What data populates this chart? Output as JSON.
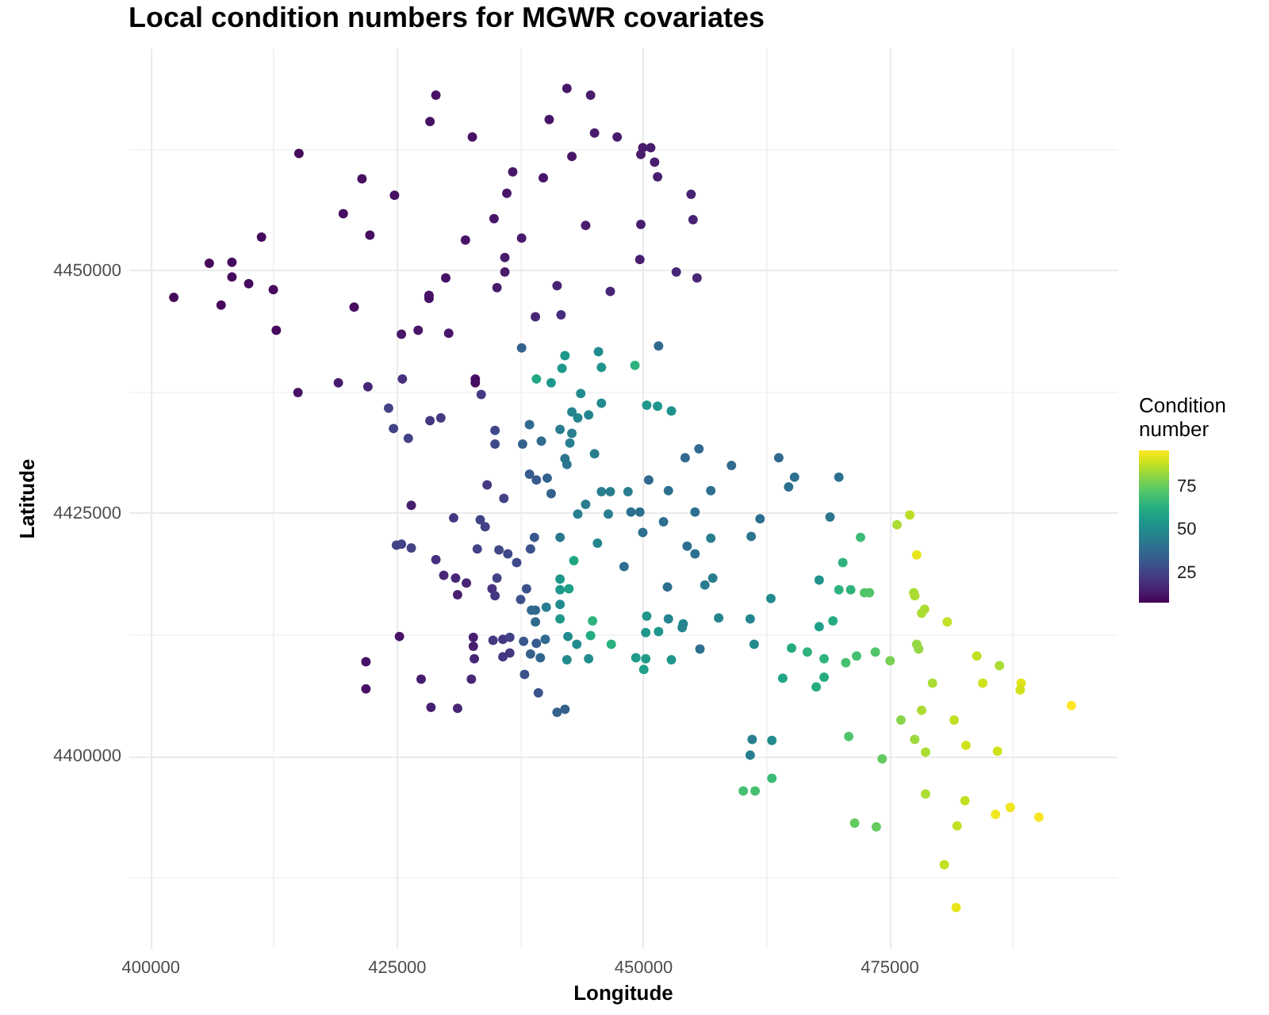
{
  "chart_data": {
    "type": "scatter",
    "title": "Local condition numbers for MGWR covariates",
    "xlabel": "Longitude",
    "ylabel": "Latitude",
    "legend_title": "Condition\nnumber",
    "x": [
      429000,
      428400,
      432700,
      415100,
      421500,
      424800,
      419600,
      434900,
      411300,
      422300,
      432000,
      406000,
      408300,
      408300,
      410000,
      412500,
      402400,
      407200,
      430000,
      428300,
      428300,
      420700,
      412800,
      425500,
      427200,
      430300,
      442300,
      444700,
      440500,
      445100,
      447400,
      450000,
      450800,
      449800,
      442800,
      451200,
      436800,
      439900,
      451500,
      436200,
      454900,
      444200,
      449800,
      455100,
      437700,
      436000,
      449700,
      436000,
      453400,
      455500,
      435200,
      441300,
      446700,
      439100,
      441700,
      437700,
      442100,
      445500,
      441800,
      445800,
      449200,
      415000,
      419100,
      422100,
      425600,
      433000,
      433000,
      433600,
      439200,
      440700,
      443700,
      450400,
      445800,
      442800,
      443400,
      444500,
      424200,
      424700,
      426200,
      428400,
      429500,
      435000,
      435000,
      438500,
      441600,
      442800,
      437800,
      439700,
      442600,
      445100,
      442100,
      442300,
      438500,
      439200,
      440300,
      440700,
      434200,
      435900,
      445800,
      446700,
      448500,
      450600,
      444200,
      443400,
      446500,
      448800,
      449700,
      426500,
      430800,
      433500,
      434000,
      450000,
      425000,
      425500,
      426500,
      433200,
      435400,
      436300,
      438600,
      439000,
      441600,
      445400,
      443000,
      437200,
      429000,
      448100,
      429800,
      431000,
      432100,
      431200,
      435200,
      434700,
      435000,
      438200,
      437600,
      441600,
      441600,
      442500,
      438700,
      439100,
      440200,
      439100,
      441600,
      441600,
      444900,
      450400,
      450300,
      425300,
      432800,
      432800,
      432900,
      434800,
      435800,
      436500,
      435800,
      436500,
      437900,
      439200,
      440100,
      438600,
      439600,
      442400,
      443300,
      444700,
      446800,
      444500,
      442300,
      449300,
      450300,
      450100,
      421900,
      421900,
      427500,
      432600,
      438000,
      439400,
      451600,
      451500,
      452900,
      454300,
      455700,
      459000,
      463800,
      465400,
      464800,
      469900,
      452600,
      456900,
      455300,
      452100,
      461900,
      469000,
      475800,
      477100,
      472100,
      477800,
      454500,
      455300,
      456900,
      461000,
      470300,
      467900,
      469900,
      471100,
      472500,
      473000,
      477500,
      477600,
      478600,
      478300,
      480900,
      452500,
      456300,
      457100,
      463000,
      451600,
      452600,
      454000,
      454100,
      457700,
      460900,
      467900,
      469300,
      455800,
      461300,
      465100,
      466700,
      468400,
      470600,
      471700,
      473600,
      475100,
      477800,
      478000,
      483900,
      486200,
      452900,
      464200,
      468400,
      467600,
      479400,
      484500,
      488400,
      488300,
      493500,
      476200,
      478300,
      481600,
      477600,
      478700,
      482800,
      486000,
      470900,
      474300,
      461100,
      463100,
      460900,
      463100,
      460200,
      461400,
      471500,
      473700,
      478700,
      482700,
      481900,
      485800,
      487300,
      490200,
      480600,
      481800,
      428500,
      431200,
      441300,
      442100
    ],
    "values": [
      4468000,
      4465300,
      4463700,
      4462000,
      4459400,
      4457700,
      4455800,
      4455300,
      4453400,
      4453600,
      4453100,
      4450700,
      4450800,
      4449300,
      4448600,
      4448000,
      4447200,
      4446400,
      4449200,
      4447400,
      4447100,
      4446200,
      4443800,
      4443400,
      4443800,
      4443500,
      4468700,
      4468000,
      4465500,
      4464100,
      4463700,
      4462600,
      4462600,
      4461900,
      4461700,
      4461100,
      4460100,
      4459500,
      4459600,
      4457900,
      4457800,
      4454600,
      4454700,
      4455200,
      4453300,
      4451300,
      4451100,
      4449800,
      4449800,
      4449200,
      4448200,
      4448400,
      4447800,
      4445200,
      4445400,
      4442000,
      4441200,
      4441600,
      4439900,
      4440000,
      4440200,
      4437400,
      4438400,
      4438000,
      4438800,
      4438800,
      4438400,
      4437200,
      4438800,
      4438400,
      4437300,
      4436100,
      4436300,
      4435400,
      4434800,
      4435100,
      4435800,
      4433700,
      4432700,
      4434500,
      4434800,
      4433500,
      4432100,
      4434100,
      4433600,
      4433200,
      4432100,
      4432400,
      4432200,
      4431100,
      4430600,
      4430000,
      4429000,
      4428400,
      4428600,
      4427000,
      4427900,
      4426500,
      4427200,
      4427200,
      4427200,
      4428400,
      4425900,
      4424900,
      4424900,
      4425100,
      4425100,
      4425800,
      4424500,
      4424300,
      4423600,
      4423000,
      4421700,
      4421800,
      4421400,
      4421300,
      4421200,
      4420800,
      4421300,
      4422500,
      4422500,
      4421900,
      4420100,
      4419900,
      4420200,
      4419500,
      4418600,
      4418300,
      4417800,
      4416600,
      4418300,
      4417200,
      4416500,
      4417200,
      4416100,
      4418200,
      4417100,
      4417200,
      4415000,
      4415000,
      4415300,
      4413800,
      4415600,
      4414100,
      4413900,
      4414400,
      4412700,
      4412300,
      4412200,
      4411300,
      4410000,
      4411900,
      4412000,
      4412200,
      4410200,
      4410600,
      4411800,
      4411600,
      4412000,
      4410500,
      4410100,
      4412300,
      4411500,
      4412400,
      4411500,
      4410000,
      4409900,
      4410100,
      4410000,
      4408900,
      4409700,
      4406900,
      4407900,
      4407900,
      4408400,
      4406500,
      4442200,
      4436000,
      4435500,
      4430700,
      4431600,
      4429900,
      4430700,
      4428700,
      4427700,
      4428700,
      4427300,
      4427300,
      4425100,
      4424100,
      4424400,
      4424600,
      4423800,
      4424800,
      4422500,
      4420700,
      4421600,
      4420800,
      4422400,
      4422600,
      4419900,
      4418100,
      4417100,
      4417100,
      4416800,
      4416800,
      4416800,
      4416500,
      4415100,
      4414700,
      4413800,
      4417400,
      4417600,
      4418300,
      4416200,
      4412800,
      4414100,
      4413200,
      4413600,
      4414200,
      4414100,
      4413300,
      4413900,
      4411000,
      4411500,
      4411100,
      4410700,
      4410000,
      4409600,
      4410300,
      4410700,
      4409800,
      4411500,
      4411000,
      4410300,
      4409300,
      4409900,
      4408000,
      4408100,
      4407100,
      4407500,
      4407500,
      4407500,
      4406800,
      4405200,
      4403700,
      4404700,
      4403700,
      4401700,
      4400400,
      4401100,
      4400500,
      4402000,
      4399700,
      4401700,
      4401600,
      4400100,
      4397700,
      4396400,
      4396400,
      4393100,
      4392700,
      4396100,
      4395400,
      4392800,
      4394000,
      4394700,
      4393700,
      4388800,
      4384400,
      4405000,
      4404900,
      4404500,
      4404800
    ],
    "cvalues": [
      12,
      12,
      12,
      10,
      11,
      11,
      11,
      13,
      10,
      11,
      12,
      10,
      10,
      10,
      10,
      10,
      9,
      10,
      12,
      12,
      12,
      11,
      10,
      13,
      13,
      13,
      13,
      14,
      13,
      14,
      14,
      14,
      14,
      14,
      13,
      15,
      13,
      13,
      15,
      13,
      16,
      15,
      15,
      16,
      14,
      14,
      15,
      14,
      17,
      17,
      14,
      16,
      17,
      17,
      19,
      35,
      55,
      50,
      55,
      53,
      65,
      12,
      14,
      17,
      20,
      11,
      11,
      22,
      60,
      55,
      50,
      55,
      50,
      48,
      48,
      48,
      25,
      25,
      25,
      22,
      22,
      27,
      27,
      38,
      45,
      45,
      35,
      38,
      45,
      45,
      43,
      43,
      33,
      33,
      35,
      35,
      22,
      25,
      45,
      45,
      45,
      38,
      45,
      45,
      45,
      40,
      40,
      15,
      22,
      25,
      25,
      40,
      25,
      25,
      25,
      25,
      27,
      27,
      30,
      32,
      43,
      48,
      60,
      27,
      20,
      40,
      17,
      17,
      17,
      15,
      25,
      20,
      22,
      30,
      30,
      55,
      55,
      58,
      37,
      37,
      45,
      38,
      50,
      55,
      65,
      54,
      54,
      12,
      15,
      15,
      17,
      22,
      22,
      25,
      22,
      22,
      32,
      33,
      38,
      35,
      37,
      50,
      50,
      62,
      64,
      50,
      50,
      56,
      56,
      58,
      12,
      12,
      15,
      17,
      30,
      30,
      38,
      55,
      52,
      38,
      38,
      38,
      38,
      40,
      40,
      40,
      40,
      40,
      40,
      40,
      40,
      42,
      85,
      87,
      68,
      93,
      40,
      40,
      45,
      42,
      65,
      52,
      65,
      65,
      72,
      72,
      85,
      85,
      85,
      85,
      88,
      40,
      45,
      45,
      50,
      54,
      48,
      48,
      48,
      48,
      48,
      58,
      62,
      40,
      50,
      62,
      65,
      65,
      70,
      70,
      72,
      78,
      82,
      82,
      88,
      85,
      55,
      60,
      62,
      62,
      85,
      90,
      92,
      90,
      96,
      80,
      85,
      88,
      83,
      85,
      90,
      90,
      72,
      75,
      45,
      50,
      45,
      68,
      70,
      70,
      75,
      75,
      85,
      88,
      88,
      94,
      94,
      95,
      88,
      93,
      15,
      17,
      35,
      35
    ],
    "clim": [
      8,
      96
    ],
    "cticks": [
      25,
      50,
      75
    ],
    "xlim": [
      397800,
      498100
    ],
    "ylim": [
      4380200,
      4472900
    ],
    "xticks": [
      400000,
      {
        "value": 412500,
        "label": null
      },
      425000,
      {
        "value": 437500,
        "label": null
      },
      450000,
      {
        "value": 462500,
        "label": null
      },
      475000,
      {
        "value": 487500,
        "label": null
      }
    ],
    "yticks": [
      {
        "value": 4387500,
        "label": null
      },
      4400000,
      {
        "value": 4412500,
        "label": null
      },
      4425000,
      {
        "value": 4437500,
        "label": null
      },
      4450000,
      {
        "value": 4462500,
        "label": null
      }
    ],
    "grid": true,
    "marker": "circle"
  }
}
